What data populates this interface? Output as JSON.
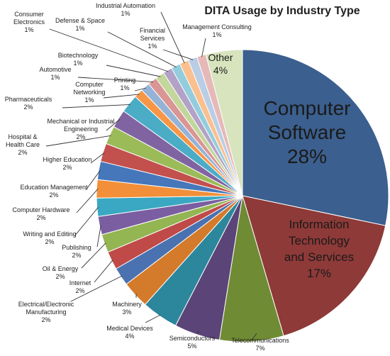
{
  "chart_data": {
    "type": "pie",
    "title": "DITA Usage by Industry Type",
    "slices": [
      {
        "label": "Computer Software",
        "display": [
          "Computer",
          "Software",
          "28%"
        ],
        "value": 28,
        "color": "#3b5f8e"
      },
      {
        "label": "Information Technology and Services",
        "display": [
          "Information",
          "Technology",
          "and Services",
          "17%"
        ],
        "value": 17,
        "color": "#8e3a38"
      },
      {
        "label": "Telecommunications",
        "display": [
          "Telecommunications",
          "7%"
        ],
        "value": 7,
        "color": "#6f8b34"
      },
      {
        "label": "Semiconductors",
        "display": [
          "Semiconductors",
          "5%"
        ],
        "value": 5,
        "color": "#5b4478"
      },
      {
        "label": "Medical Devices",
        "display": [
          "Medical Devices",
          "4%"
        ],
        "value": 4,
        "color": "#2c869c"
      },
      {
        "label": "Machinery",
        "display": [
          "Machinery",
          "3%"
        ],
        "value": 3,
        "color": "#d47a2b"
      },
      {
        "label": "Electrical/Electronic Manufacturing",
        "display": [
          "Electrical/Electronic",
          "Manufacturing",
          "2%"
        ],
        "value": 2,
        "color": "#4a72b0"
      },
      {
        "label": "Internet",
        "display": [
          "Internet",
          "2%"
        ],
        "value": 2,
        "color": "#bf4a47"
      },
      {
        "label": "Oil & Energy",
        "display": [
          "Oil & Energy",
          "2%"
        ],
        "value": 2,
        "color": "#93b552"
      },
      {
        "label": "Publishing",
        "display": [
          "Publishing",
          "2%"
        ],
        "value": 2,
        "color": "#7a5ea1"
      },
      {
        "label": "Writing and Editing",
        "display": [
          "Writing and Editing",
          "2%"
        ],
        "value": 2,
        "color": "#3aa8c2"
      },
      {
        "label": "Computer Hardware",
        "display": [
          "Computer  Hardware",
          "2%"
        ],
        "value": 2,
        "color": "#f28f38"
      },
      {
        "label": "Education Management",
        "display": [
          "Education Management",
          "2%"
        ],
        "value": 2,
        "color": "#4677ba"
      },
      {
        "label": "Higher Education",
        "display": [
          "Higher Education",
          "2%"
        ],
        "value": 2,
        "color": "#c2504d"
      },
      {
        "label": "Hospital & Health Care",
        "display": [
          "Hospital &",
          "Health Care",
          "2%"
        ],
        "value": 2,
        "color": "#9bbb59"
      },
      {
        "label": "Mechanical or Industrial Engineering",
        "display": [
          "Mechanical or Industrial",
          "Engineering",
          "2%"
        ],
        "value": 2,
        "color": "#8064a2"
      },
      {
        "label": "Pharmaceuticals",
        "display": [
          "Pharmaceuticals",
          "2%"
        ],
        "value": 2,
        "color": "#4bacc6"
      },
      {
        "label": "Computer Networking",
        "display": [
          "Computer",
          "Networking",
          "1%"
        ],
        "value": 1,
        "color": "#f79646"
      },
      {
        "label": "Printing",
        "display": [
          "Printing",
          "1%"
        ],
        "value": 1,
        "color": "#95b3d7"
      },
      {
        "label": "Automotive",
        "display": [
          "Automotive",
          "1%"
        ],
        "value": 1,
        "color": "#d99694"
      },
      {
        "label": "Biotechnology",
        "display": [
          "Biotechnology",
          "1%"
        ],
        "value": 1,
        "color": "#c3d69b"
      },
      {
        "label": "Consumer Electronics",
        "display": [
          "Consumer",
          "Electronics",
          "1%"
        ],
        "value": 1,
        "color": "#b3a2c7"
      },
      {
        "label": "Defense & Space",
        "display": [
          "Defense & Space",
          "1%"
        ],
        "value": 1,
        "color": "#93cddd"
      },
      {
        "label": "Industrial Automation",
        "display": [
          "Industrial Automation",
          "1%"
        ],
        "value": 1,
        "color": "#fac08f"
      },
      {
        "label": "Financial Services",
        "display": [
          "Financial",
          "Services",
          "1%"
        ],
        "value": 1,
        "color": "#b9cde5"
      },
      {
        "label": "Management Consulting",
        "display": [
          "Management Consulting",
          "1%"
        ],
        "value": 1,
        "color": "#e6b9b8"
      },
      {
        "label": "Other",
        "display": [
          "Other",
          "4%"
        ],
        "value": 4,
        "color": "#d7e4bd"
      }
    ],
    "legend": "none"
  }
}
